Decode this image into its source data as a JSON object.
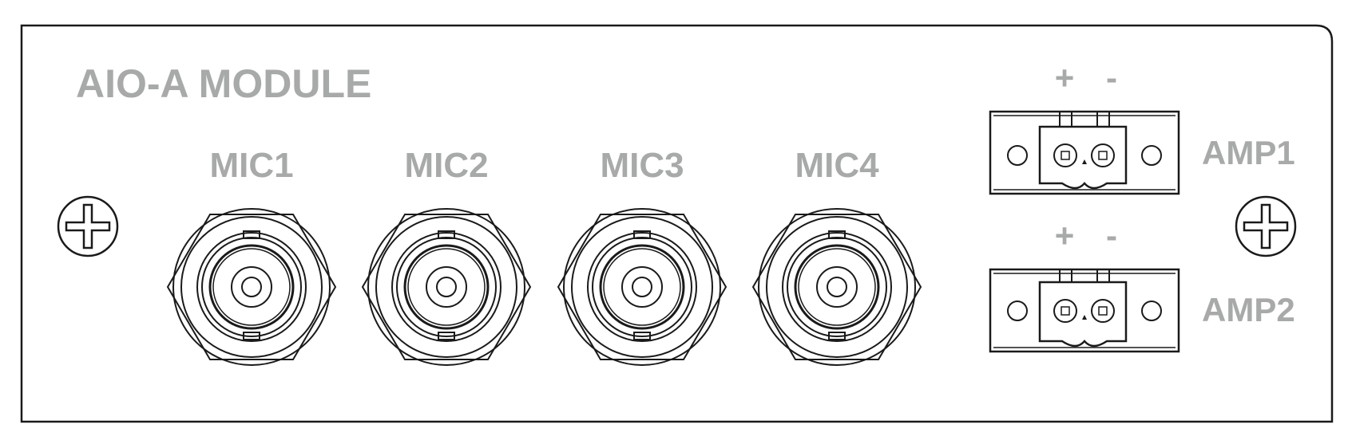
{
  "module": {
    "title": "AIO-A MODULE"
  },
  "mic_inputs": [
    {
      "label": "MIC1"
    },
    {
      "label": "MIC2"
    },
    {
      "label": "MIC3"
    },
    {
      "label": "MIC4"
    }
  ],
  "amp_outputs": [
    {
      "label": "AMP1",
      "plus": "+",
      "minus": "-"
    },
    {
      "label": "AMP2",
      "plus": "+",
      "minus": "-"
    }
  ],
  "colors": {
    "label_gray": "#a7aaa8",
    "line": "#1a1a1a",
    "background": "#ffffff"
  }
}
